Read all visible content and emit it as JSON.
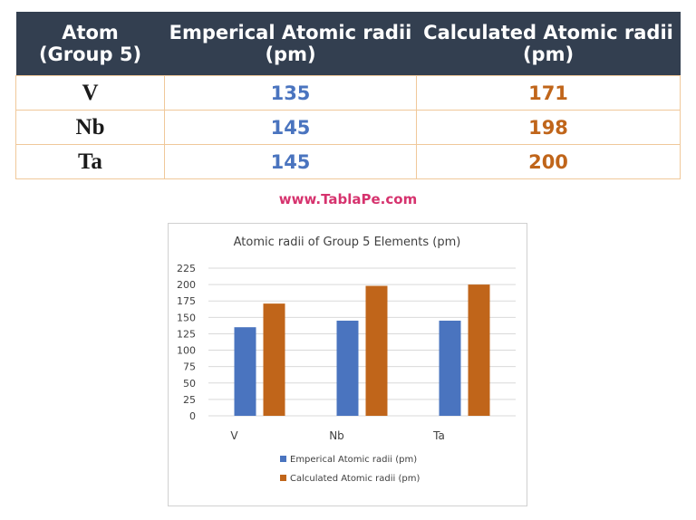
{
  "table": {
    "headers": [
      "Atom\n(Group 5)",
      "Emperical Atomic radii\n(pm)",
      "Calculated Atomic radii\n(pm)"
    ],
    "rows": [
      {
        "atom": "V",
        "empirical": "135",
        "calculated": "171"
      },
      {
        "atom": "Nb",
        "empirical": "145",
        "calculated": "198"
      },
      {
        "atom": "Ta",
        "empirical": "145",
        "calculated": "200"
      }
    ]
  },
  "source_text": "www.TablaPe.com",
  "colors": {
    "header_bg": "#333f50",
    "empirical": "#4a74bf",
    "calculated": "#c0651a",
    "source": "#d6336e"
  },
  "chart_data": {
    "type": "bar",
    "title": "Atomic radii of Group 5 Elements (pm)",
    "xlabel": "",
    "ylabel": "",
    "categories": [
      "V",
      "Nb",
      "Ta"
    ],
    "series": [
      {
        "name": "Emperical Atomic radii (pm)",
        "values": [
          135,
          145,
          145
        ],
        "color": "#4a74bf"
      },
      {
        "name": "Calculated Atomic radii (pm)",
        "values": [
          171,
          198,
          200
        ],
        "color": "#c0651a"
      }
    ],
    "ylim": [
      0,
      225
    ],
    "yticks": [
      0,
      25,
      50,
      75,
      100,
      125,
      150,
      175,
      200,
      225
    ],
    "grid": true,
    "legend": "bottom"
  }
}
